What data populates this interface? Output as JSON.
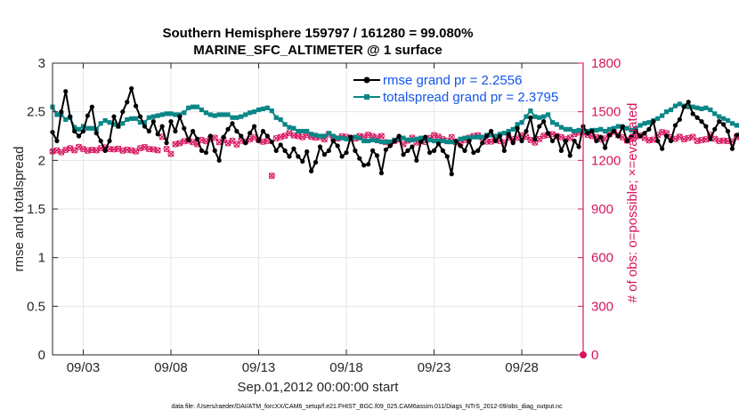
{
  "chart_data": {
    "type": "line",
    "title": "Southern Hemisphere 159797 / 161280 = 99.080%",
    "subtitle": "MARINE_SFC_ALTIMETER @ 1 surface",
    "xlabel": "Sep.01,2012 00:00:00 start",
    "ylabel": "rmse and totalspread",
    "ylabel_right": "# of obs: o=possible; ×=evaluated",
    "footer": "data file: /Users/raeder/DAI/ATM_forcXX/CAM6_setup/f.e21.FHIST_BGC.f09_025.CAM6assim.011/Diags_NTrS_2012-09/obs_diag_output.nc",
    "x_range_days": [
      1.25,
      31.5
    ],
    "ylim": [
      0,
      3
    ],
    "ylim_right": [
      0,
      1800
    ],
    "x_tick_days": [
      3,
      8,
      13,
      18,
      23,
      28
    ],
    "x_tick_labels": [
      "09/03",
      "09/08",
      "09/13",
      "09/18",
      "09/23",
      "09/28"
    ],
    "y_ticks": [
      "0",
      "0.5",
      "1",
      "1.5",
      "2",
      "2.5",
      "3"
    ],
    "y_ticks_right": [
      "0",
      "300",
      "600",
      "900",
      "1200",
      "1500",
      "1800"
    ],
    "grid": true,
    "legend_position": "top-right",
    "time_step_days": 0.25,
    "series": [
      {
        "name": "rmse grand pr = 2.2556",
        "color": "#000000",
        "marker": "dot",
        "axis": "left",
        "start_day": 1.25,
        "values": [
          2.29,
          2.2,
          2.5,
          2.71,
          2.45,
          2.3,
          2.25,
          2.3,
          2.46,
          2.55,
          2.28,
          2.2,
          2.1,
          2.2,
          2.45,
          2.35,
          2.5,
          2.6,
          2.74,
          2.56,
          2.45,
          2.35,
          2.3,
          2.4,
          2.27,
          2.35,
          2.18,
          2.4,
          2.3,
          2.45,
          2.33,
          2.21,
          2.3,
          2.22,
          2.1,
          2.08,
          2.25,
          2.1,
          2.0,
          2.24,
          2.32,
          2.38,
          2.3,
          2.25,
          2.18,
          2.28,
          2.35,
          2.2,
          2.3,
          2.25,
          2.19,
          2.1,
          2.16,
          2.1,
          2.04,
          2.12,
          2.04,
          1.99,
          2.09,
          1.89,
          1.98,
          2.14,
          2.06,
          2.1,
          2.2,
          2.15,
          2.04,
          2.08,
          2.24,
          2.1,
          2.02,
          1.95,
          1.96,
          2.1,
          2.05,
          1.87,
          2.11,
          2.15,
          2.2,
          2.25,
          2.06,
          2.1,
          2.14,
          2.0,
          2.19,
          2.24,
          2.08,
          2.1,
          2.17,
          2.1,
          2.04,
          1.86,
          2.2,
          2.15,
          2.1,
          2.2,
          2.08,
          2.1,
          2.18,
          2.25,
          2.3,
          2.2,
          2.25,
          2.1,
          2.27,
          2.18,
          2.33,
          2.2,
          2.3,
          2.44,
          2.22,
          2.35,
          2.4,
          2.28,
          2.2,
          2.25,
          2.1,
          2.2,
          2.05,
          2.2,
          2.14,
          2.35,
          2.28,
          2.3,
          2.2,
          2.24,
          2.13,
          2.26,
          2.3,
          2.25,
          2.35,
          2.2,
          2.25,
          2.3,
          2.25,
          2.28,
          2.32,
          2.4,
          2.2,
          2.12,
          2.25,
          2.2,
          2.36,
          2.42,
          2.55,
          2.6,
          2.48,
          2.44,
          2.4,
          2.35,
          2.22,
          2.32,
          2.4,
          2.37,
          2.3,
          2.12,
          2.26,
          2.29,
          2.42,
          2.35,
          2.45,
          2.5,
          2.53,
          2.37
        ]
      },
      {
        "name": "totalspread grand pr = 2.3795",
        "color": "#0b8686",
        "marker": "square",
        "axis": "left",
        "start_day": 1.25,
        "values": [
          2.55,
          2.47,
          2.47,
          2.42,
          2.44,
          2.34,
          2.32,
          2.35,
          2.33,
          2.33,
          2.32,
          2.38,
          2.41,
          2.39,
          2.37,
          2.35,
          2.38,
          2.42,
          2.43,
          2.43,
          2.39,
          2.39,
          2.44,
          2.45,
          2.46,
          2.47,
          2.48,
          2.48,
          2.47,
          2.47,
          2.49,
          2.54,
          2.55,
          2.55,
          2.52,
          2.49,
          2.47,
          2.46,
          2.47,
          2.47,
          2.47,
          2.44,
          2.44,
          2.45,
          2.47,
          2.49,
          2.5,
          2.52,
          2.53,
          2.54,
          2.51,
          2.44,
          2.42,
          2.37,
          2.34,
          2.33,
          2.3,
          2.3,
          2.3,
          2.27,
          2.26,
          2.25,
          2.25,
          2.28,
          2.25,
          2.23,
          2.23,
          2.22,
          2.23,
          2.24,
          2.23,
          2.2,
          2.2,
          2.21,
          2.2,
          2.19,
          2.19,
          2.19,
          2.21,
          2.22,
          2.23,
          2.21,
          2.21,
          2.22,
          2.23,
          2.22,
          2.21,
          2.2,
          2.2,
          2.2,
          2.19,
          2.19,
          2.19,
          2.22,
          2.23,
          2.23,
          2.24,
          2.24,
          2.24,
          2.26,
          2.26,
          2.25,
          2.27,
          2.28,
          2.3,
          2.32,
          2.37,
          2.39,
          2.45,
          2.51,
          2.45,
          2.44,
          2.45,
          2.47,
          2.39,
          2.37,
          2.34,
          2.32,
          2.32,
          2.3,
          2.31,
          2.3,
          2.3,
          2.31,
          2.31,
          2.32,
          2.3,
          2.32,
          2.33,
          2.35,
          2.34,
          2.33,
          2.31,
          2.33,
          2.36,
          2.38,
          2.39,
          2.41,
          2.43,
          2.46,
          2.5,
          2.52,
          2.56,
          2.58,
          2.56,
          2.55,
          2.55,
          2.54,
          2.53,
          2.54,
          2.52,
          2.48,
          2.45,
          2.43,
          2.41,
          2.38,
          2.36,
          2.36,
          2.38,
          2.38,
          2.37,
          2.37
        ]
      },
      {
        "name": "obs possible",
        "color": "#d6155f",
        "marker": "circle",
        "axis": "right",
        "start_day": 1.25,
        "values": [
          1255,
          1262,
          1250,
          1265,
          1275,
          1262,
          1283,
          1270,
          1260,
          1265,
          1262,
          1275,
          1280,
          1270,
          1268,
          1272,
          1260,
          1266,
          1262,
          1255,
          1275,
          1282,
          1270,
          1268,
          1262,
          1345,
          1270,
          1240,
          1300,
          1306,
          1318,
          1322,
          1312,
          1300,
          1326,
          1318,
          1333,
          1340,
          1312,
          1326,
          1306,
          1321,
          1298,
          1322,
          1316,
          1330,
          1342,
          1326,
          1315,
          1320,
          1105,
          1336,
          1344,
          1352,
          1368,
          1354,
          1350,
          1343,
          1358,
          1346,
          1340,
          1344,
          1330,
          1360,
          1340,
          1335,
          1348,
          1345,
          1339,
          1334,
          1350,
          1346,
          1358,
          1349,
          1340,
          1350,
          1312,
          1306,
          1320,
          1330,
          1300,
          1322,
          1340,
          1310,
          1323,
          1314,
          1338,
          1356,
          1346,
          1330,
          1320,
          1343,
          1312,
          1306,
          1325,
          1340,
          1350,
          1355,
          1340,
          1316,
          1316,
          1330,
          1320,
          1310,
          1340,
          1330,
          1340,
          1354,
          1345,
          1326,
          1310,
          1332,
          1352,
          1358,
          1362,
          1350,
          1344,
          1330,
          1340,
          1362,
          1372,
          1374,
          1358,
          1350,
          1344,
          1330,
          1335,
          1362,
          1376,
          1355,
          1342,
          1322,
          1334,
          1348,
          1354,
          1338,
          1324,
          1328,
          1356,
          1374,
          1368,
          1342,
          1333,
          1346,
          1330,
          1338,
          1345,
          1320,
          1325,
          1330,
          1358,
          1333,
          1320,
          1322,
          1319,
          1316,
          1345,
          1342,
          1346,
          1324,
          1316,
          1346,
          1335,
          1340,
          1330,
          1325
        ]
      }
    ],
    "extra_points": [
      {
        "series": "obs possible",
        "day": 31.5,
        "value": 0
      }
    ]
  }
}
